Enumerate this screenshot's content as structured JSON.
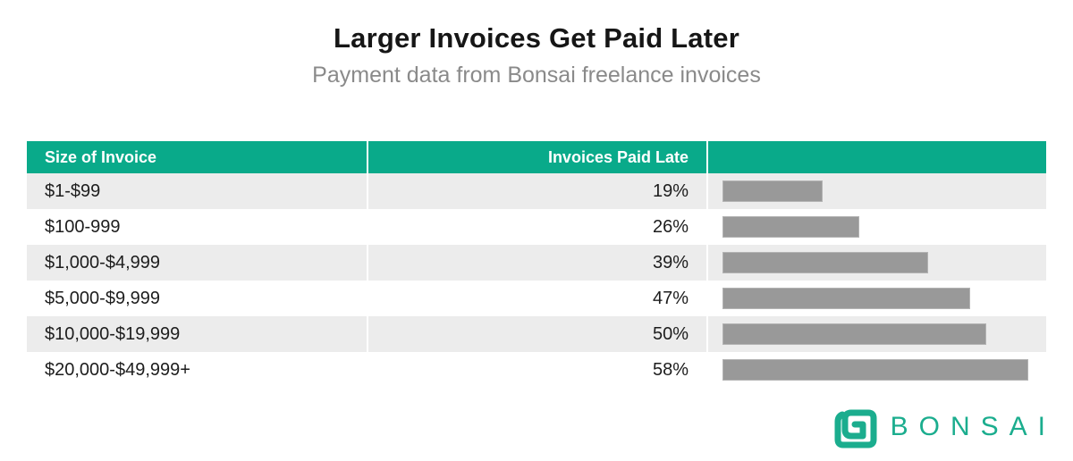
{
  "header": {
    "title": "Larger Invoices Get Paid Later",
    "subtitle": "Payment data from Bonsai freelance invoices"
  },
  "table": {
    "col1_header": "Size of Invoice",
    "col2_header": "Invoices Paid Late",
    "rows": [
      {
        "label": "$1-$99",
        "pct": "19%",
        "value": 19
      },
      {
        "label": "$100-999",
        "pct": "26%",
        "value": 26
      },
      {
        "label": "$1,000-$4,999",
        "pct": "39%",
        "value": 39
      },
      {
        "label": "$5,000-$9,999",
        "pct": "47%",
        "value": 47
      },
      {
        "label": "$10,000-$19,999",
        "pct": "50%",
        "value": 50
      },
      {
        "label": "$20,000-$49,999+",
        "pct": "58%",
        "value": 58
      }
    ]
  },
  "chart_data": {
    "type": "bar",
    "orientation": "horizontal",
    "title": "Larger Invoices Get Paid Later",
    "subtitle": "Payment data from Bonsai freelance invoices",
    "categories": [
      "$1-$99",
      "$100-999",
      "$1,000-$4,999",
      "$5,000-$9,999",
      "$10,000-$19,999",
      "$20,000-$49,999+"
    ],
    "values": [
      19,
      26,
      39,
      47,
      50,
      58
    ],
    "value_labels": [
      "19%",
      "26%",
      "39%",
      "47%",
      "50%",
      "58%"
    ],
    "xlabel": "Invoices Paid Late",
    "ylabel": "Size of Invoice",
    "xlim": [
      0,
      60
    ],
    "grid": false,
    "legend": false,
    "bar_color": "#999999"
  },
  "branding": {
    "logo_text": "BONSAI",
    "logo_icon": "bonsai-spiral-icon",
    "brand_color": "#1bad8e"
  },
  "colors": {
    "header_bg": "#09aa8a",
    "header_text": "#ffffff",
    "row_alt_bg": "#ececec",
    "row_bg": "#ffffff",
    "bar_fill": "#999999",
    "title_text": "#161616",
    "subtitle_text": "#8a8a8a"
  }
}
